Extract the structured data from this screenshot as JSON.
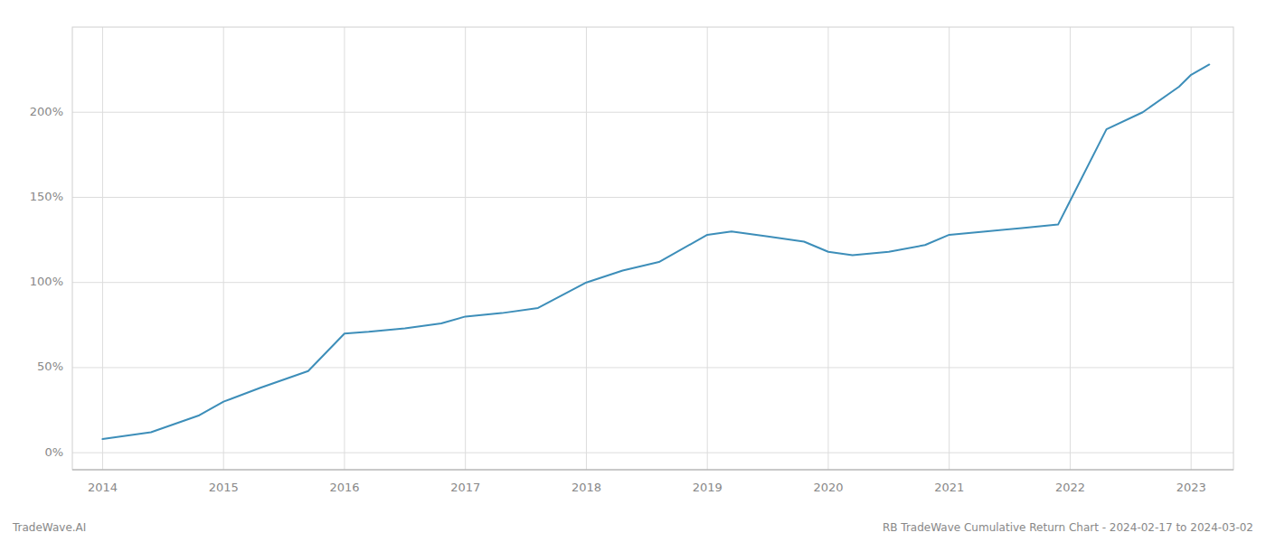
{
  "chart_data": {
    "type": "line",
    "annotations": [
      "TradeWave.AI",
      "RB TradeWave Cumulative Return Chart - 2024-02-17 to 2024-03-02"
    ],
    "x": [
      2014.0,
      2014.4,
      2014.8,
      2015.0,
      2015.3,
      2015.7,
      2016.0,
      2016.2,
      2016.5,
      2016.8,
      2017.0,
      2017.3,
      2017.6,
      2018.0,
      2018.3,
      2018.6,
      2019.0,
      2019.2,
      2019.5,
      2019.8,
      2020.0,
      2020.2,
      2020.5,
      2020.8,
      2021.0,
      2021.3,
      2021.6,
      2021.9,
      2022.0,
      2022.3,
      2022.6,
      2022.9,
      2023.0,
      2023.15
    ],
    "values": [
      8,
      12,
      22,
      30,
      38,
      48,
      70,
      71,
      73,
      76,
      80,
      82,
      85,
      100,
      107,
      112,
      128,
      130,
      127,
      124,
      118,
      116,
      118,
      122,
      128,
      130,
      132,
      134,
      148,
      190,
      200,
      215,
      222,
      228
    ],
    "color": "#3d8eb9",
    "xlim": [
      2013.75,
      2023.35
    ],
    "ylim": [
      -10,
      250
    ],
    "xticks": [
      2014,
      2015,
      2016,
      2017,
      2018,
      2019,
      2020,
      2021,
      2022,
      2023
    ],
    "yticks": [
      {
        "value": 0,
        "label": "0%"
      },
      {
        "value": 50,
        "label": "50%"
      },
      {
        "value": 100,
        "label": "100%"
      },
      {
        "value": 150,
        "label": "150%"
      },
      {
        "value": 200,
        "label": "200%"
      }
    ],
    "grid": true
  }
}
